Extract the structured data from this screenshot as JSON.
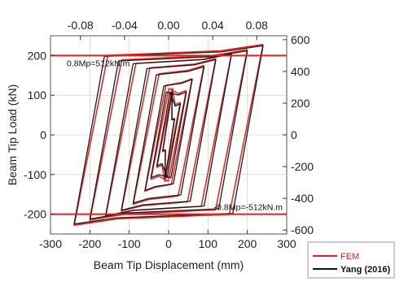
{
  "chart_data": {
    "type": "line",
    "xlabel": "Beam Tip Displacement (mm)",
    "ylabel": "Beam Tip Load (kN)",
    "xlim": [
      -300,
      300
    ],
    "ylim": [
      -250,
      250
    ],
    "x_ticks": [
      "-300",
      "-200",
      "-100",
      "0",
      "100",
      "200",
      "300"
    ],
    "y_ticks": [
      "-200",
      "-100",
      "0",
      "100",
      "200"
    ],
    "x2_ticks": [
      "-0.08",
      "-0.04",
      "0.00",
      "0.04",
      "0.08"
    ],
    "x2_values": [
      -0.08,
      -0.04,
      0.0,
      0.04,
      0.08
    ],
    "y2_ticks": [
      "-600",
      "-400",
      "-200",
      "0",
      "200",
      "400",
      "600"
    ],
    "y2_values": [
      -600,
      -400,
      -200,
      0,
      200,
      400,
      600
    ],
    "y2lim": [
      -625,
      625
    ],
    "reference_lines": [
      {
        "y": 200,
        "label": "0.8Mp=512kN.m",
        "color": "#e02020"
      },
      {
        "y": -200,
        "label": "-0.8Mp=-512kN.m",
        "color": "#e02020"
      }
    ],
    "amplitudes_mm": [
      15,
      30,
      45,
      60,
      90,
      120,
      160,
      200,
      240
    ],
    "series": [
      {
        "name": "FEM",
        "color": "#e02020",
        "peak_load": [
          42,
          82,
          112,
          142,
          175,
          192,
          205,
          215,
          228
        ],
        "yield_load": 130,
        "unload_stiffness": 5.0
      },
      {
        "name": "Yang (2016)",
        "color": "#111111",
        "peak_load": [
          40,
          78,
          108,
          140,
          172,
          190,
          204,
          212,
          225
        ],
        "yield_load": 120,
        "unload_stiffness": 5.5
      }
    ],
    "grid": true,
    "legend_position": "bottom-right"
  }
}
